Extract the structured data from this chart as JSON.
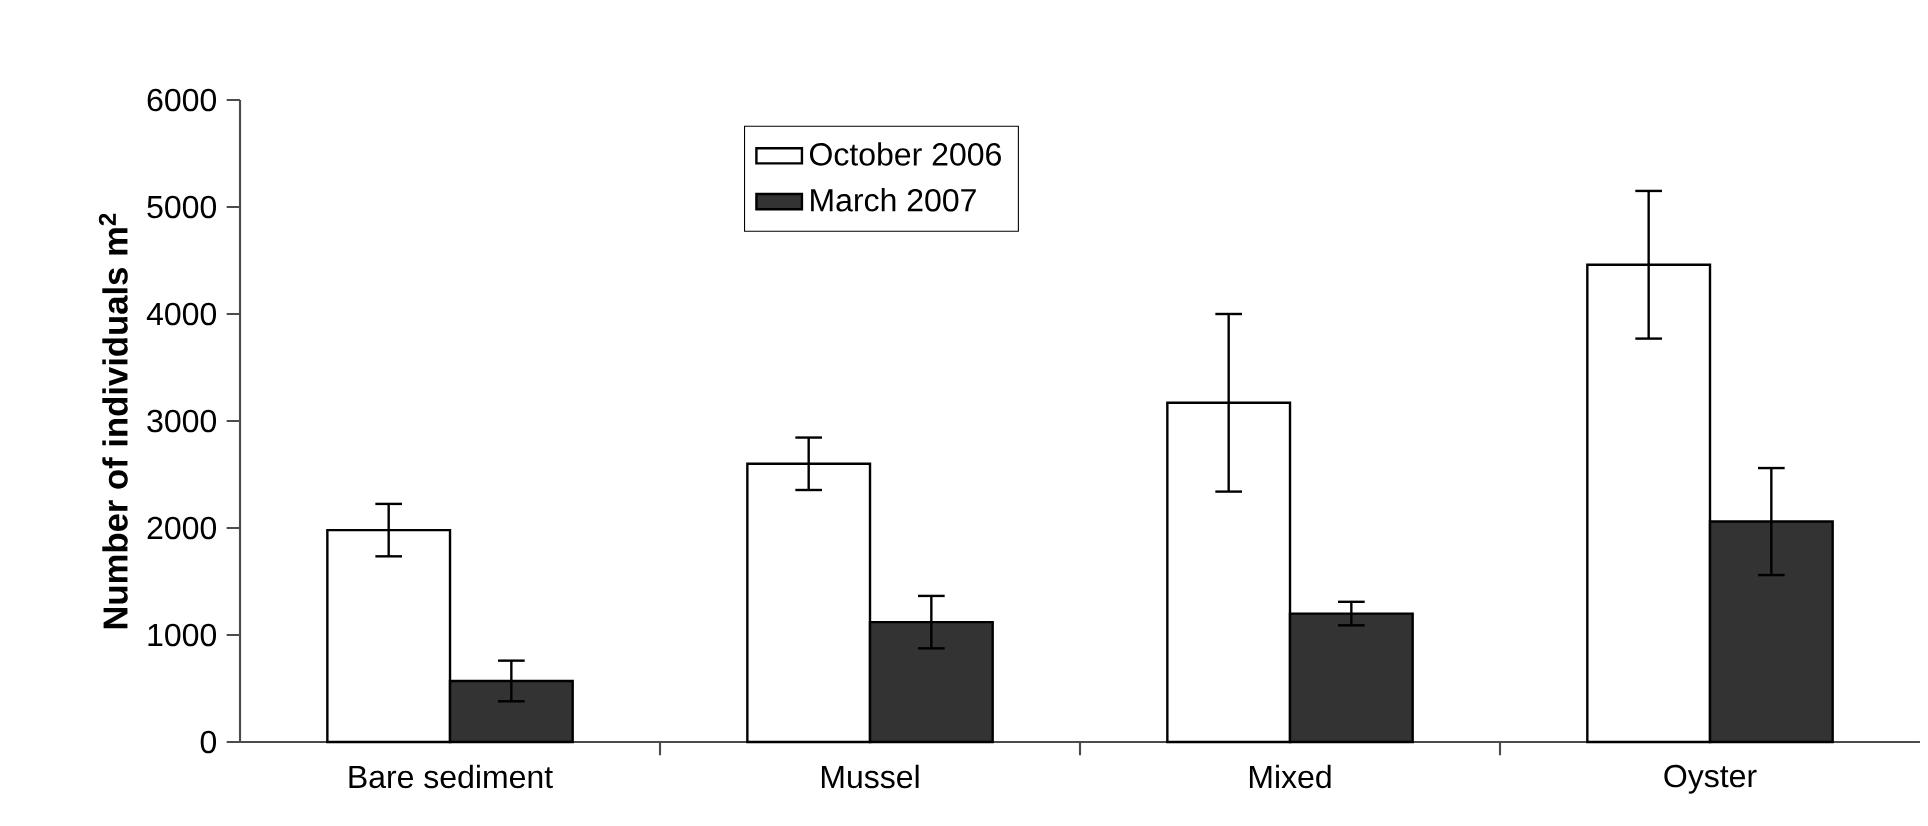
{
  "chart_data": {
    "type": "bar",
    "ylabel": "Number of individuals m$^{2}$",
    "categories": [
      "Bare sediment",
      "Mussel",
      "Mixed",
      "Oyster"
    ],
    "series": [
      {
        "name": "October 2006",
        "color": "#ffffff",
        "values": [
          1980,
          2600,
          3170,
          4460
        ],
        "errors": [
          245,
          245,
          830,
          690
        ]
      },
      {
        "name": "March 2007",
        "color": "#333333",
        "values": [
          570,
          1120,
          1200,
          2060
        ],
        "errors": [
          190,
          245,
          110,
          500
        ]
      }
    ],
    "ylim": [
      0,
      6000
    ],
    "yticks": [
      0,
      1000,
      2000,
      3000,
      4000,
      5000,
      6000
    ],
    "legend": "top"
  }
}
